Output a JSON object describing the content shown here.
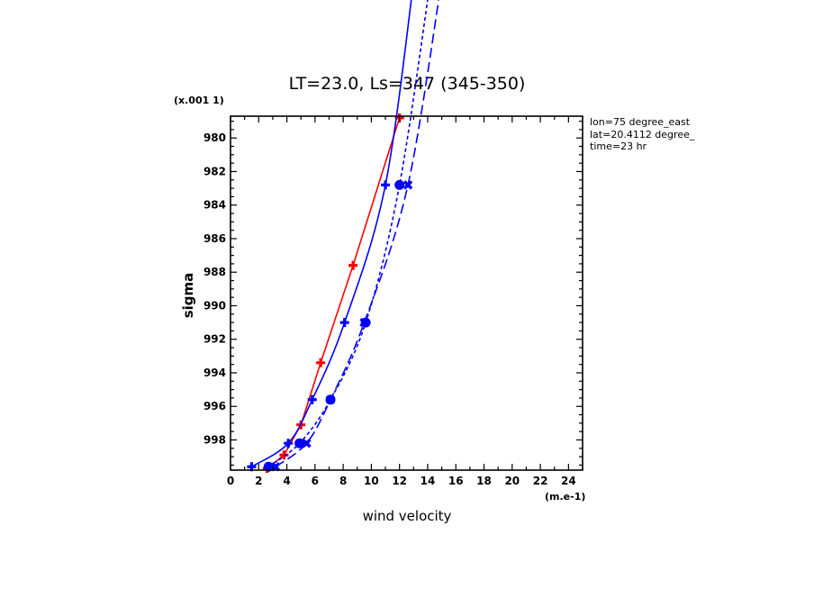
{
  "chart_data": {
    "type": "line",
    "title": "LT=23.0, Ls=347 (345-350)",
    "xlabel": "wind velocity",
    "ylabel": "sigma",
    "x_units": "(m.e-1)",
    "y_units": "(x.001 1)",
    "xlim": [
      0,
      25
    ],
    "ylim": [
      999.8,
      978.7
    ],
    "x_ticks": [
      0,
      2,
      4,
      6,
      8,
      10,
      12,
      14,
      16,
      18,
      20,
      22,
      24
    ],
    "y_ticks": [
      980,
      982,
      984,
      986,
      988,
      990,
      992,
      994,
      996,
      998
    ],
    "grid": false,
    "info": [
      "lon=75 degree_east",
      "lat=20.4112 degree_",
      "time=23 hr"
    ],
    "series": [
      {
        "color": "#ff0000",
        "style": "solid",
        "marker": "plus",
        "points": [
          [
            2.6,
            999.7
          ],
          [
            3.8,
            998.9
          ],
          [
            5.0,
            997.1
          ],
          [
            6.4,
            993.4
          ],
          [
            8.7,
            987.6
          ],
          [
            12.0,
            978.8
          ]
        ]
      },
      {
        "color": "#0000ff",
        "style": "solid",
        "marker": "plus",
        "points": [
          [
            1.5,
            999.6
          ],
          [
            4.1,
            998.2
          ],
          [
            5.8,
            995.6
          ],
          [
            8.1,
            991.0
          ],
          [
            11.0,
            982.8
          ],
          [
            13.1,
            970.0
          ]
        ]
      },
      {
        "color": "#0000ff",
        "style": "short-dash",
        "marker": "circle",
        "points": [
          [
            2.7,
            999.6
          ],
          [
            4.9,
            998.2
          ],
          [
            7.1,
            995.6
          ],
          [
            9.6,
            991.0
          ],
          [
            12.0,
            982.8
          ],
          [
            14.3,
            970.0
          ]
        ]
      },
      {
        "color": "#0000ff",
        "style": "long-dash",
        "marker": "cross",
        "points": [
          [
            3.2,
            999.6
          ],
          [
            5.4,
            998.2
          ],
          [
            7.1,
            995.6
          ],
          [
            9.5,
            991.0
          ],
          [
            12.6,
            982.8
          ],
          [
            15.1,
            970.0
          ]
        ]
      }
    ]
  }
}
